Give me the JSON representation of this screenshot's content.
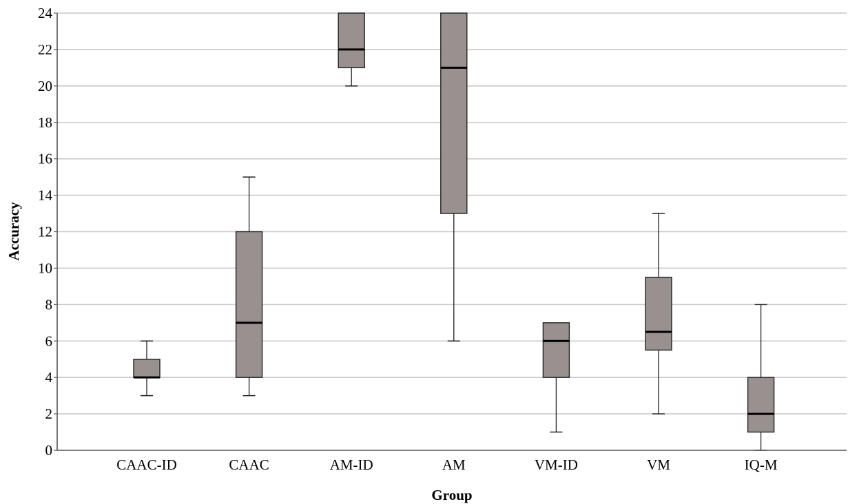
{
  "chart_data": {
    "type": "box",
    "title": "",
    "xlabel": "Group",
    "ylabel": "Accuracy",
    "ylim": [
      0,
      24
    ],
    "yticks": [
      0,
      2,
      4,
      6,
      8,
      10,
      12,
      14,
      16,
      18,
      20,
      22,
      24
    ],
    "ytick_labels": [
      "0",
      "2",
      "4",
      "6",
      "8",
      "10",
      "12",
      "14",
      "16",
      "18",
      "20",
      "22",
      "24"
    ],
    "grid": true,
    "categories": [
      "CAAC-ID",
      "CAAC",
      "AM-ID",
      "AM",
      "VM-ID",
      "VM",
      "IQ-M"
    ],
    "boxes": [
      {
        "group": "CAAC-ID",
        "min": 3,
        "q1": 4,
        "median": 4,
        "q3": 5,
        "max": 6
      },
      {
        "group": "CAAC",
        "min": 3,
        "q1": 4,
        "median": 7,
        "q3": 12,
        "max": 15
      },
      {
        "group": "AM-ID",
        "min": 20,
        "q1": 21,
        "median": 22,
        "q3": 24,
        "max": 24
      },
      {
        "group": "AM",
        "min": 6,
        "q1": 13,
        "median": 21,
        "q3": 24,
        "max": 24
      },
      {
        "group": "VM-ID",
        "min": 1,
        "q1": 4,
        "median": 6,
        "q3": 7,
        "max": 7
      },
      {
        "group": "VM",
        "min": 2,
        "q1": 5.5,
        "median": 6.5,
        "q3": 9.5,
        "max": 13
      },
      {
        "group": "IQ-M",
        "min": 0,
        "q1": 1,
        "median": 2,
        "q3": 4,
        "max": 8
      }
    ],
    "colors": {
      "box_fill": "#989190",
      "box_stroke": "#222222",
      "median": "#000000",
      "grid": "#c8c8c8",
      "axis": "#555555"
    }
  }
}
